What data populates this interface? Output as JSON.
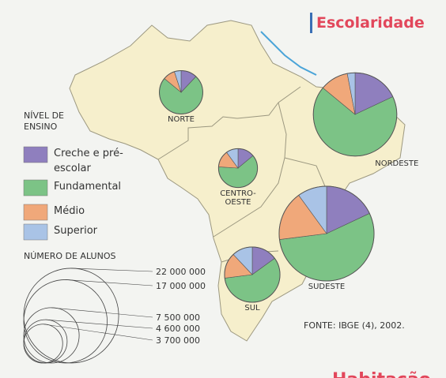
{
  "title": "Escolaridade",
  "legend": {
    "title": "NÍVEL DE ENSINO",
    "categories": [
      {
        "name": "Creche e pré-escolar",
        "color": "#8f7fbe"
      },
      {
        "name": "Fundamental",
        "color": "#7cc386"
      },
      {
        "name": "Médio",
        "color": "#f0a87a"
      },
      {
        "name": "Superior",
        "color": "#a9c3e6"
      }
    ]
  },
  "regions": [
    {
      "name": "NORTE",
      "total": 4600000,
      "values": [
        12,
        74,
        9,
        5
      ]
    },
    {
      "name": "CENTRO-OESTE",
      "total": 3700000,
      "values": [
        14,
        62,
        14,
        10
      ]
    },
    {
      "name": "NORDESTE",
      "total": 17000000,
      "values": [
        18,
        68,
        11,
        3
      ]
    },
    {
      "name": "SUDESTE",
      "total": 22000000,
      "values": [
        18,
        55,
        17,
        10
      ]
    },
    {
      "name": "SUL",
      "total": 7500000,
      "values": [
        15,
        58,
        15,
        12
      ]
    }
  ],
  "scale": {
    "title": "NÚMERO DE ALUNOS",
    "ticks": [
      {
        "value": 22000000,
        "label": "22 000 000"
      },
      {
        "value": 17000000,
        "label": "17 000 000"
      },
      {
        "value": 7500000,
        "label": "7 500 000"
      },
      {
        "value": 4600000,
        "label": "4 600 000"
      },
      {
        "value": 3700000,
        "label": "3 700 000"
      }
    ]
  },
  "source": "FONTE: IBGE (4), 2002.",
  "next_title": "Habitação"
}
